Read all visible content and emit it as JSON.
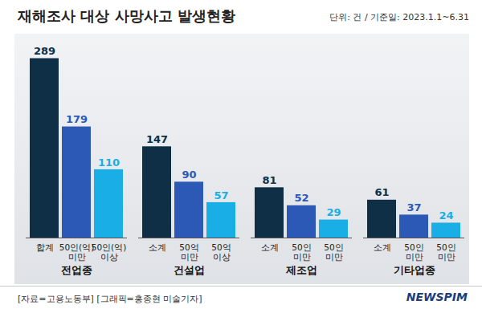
{
  "chart_data": {
    "type": "bar",
    "title": "재해조사 대상 사망사고 발생현황",
    "subtitle": "단위: 건 / 기준일: 2023.1.1~6.31",
    "annotations": [
      "[자료=고용노동부] [그래픽=홍종현 미술기자]",
      "NEWSPIM"
    ],
    "categories": [
      "합계",
      "50인(억) 미만",
      "50인(억) 이상",
      "소계",
      "50억 미만",
      "50억 이상",
      "소계",
      "50인 미만",
      "50인 미만",
      "소계",
      "50인 미만",
      "50인 미만"
    ],
    "groups": [
      "전업종",
      "전업종",
      "전업종",
      "건설업",
      "건설업",
      "건설업",
      "제조업",
      "제조업",
      "제조업",
      "기타업종",
      "기타업종",
      "기타업종"
    ],
    "values": [
      289,
      179,
      110,
      147,
      90,
      57,
      81,
      52,
      29,
      61,
      37,
      24
    ],
    "colors": [
      "#0f2f47",
      "#2c58b6",
      "#19aee6",
      "#0f2f47",
      "#2c58b6",
      "#19aee6",
      "#0f2f47",
      "#2c58b6",
      "#19aee6",
      "#0f2f47",
      "#2c58b6",
      "#19aee6"
    ],
    "ylim": [
      0,
      300
    ],
    "data_labels": true,
    "tick_labels": false,
    "grid": false
  }
}
